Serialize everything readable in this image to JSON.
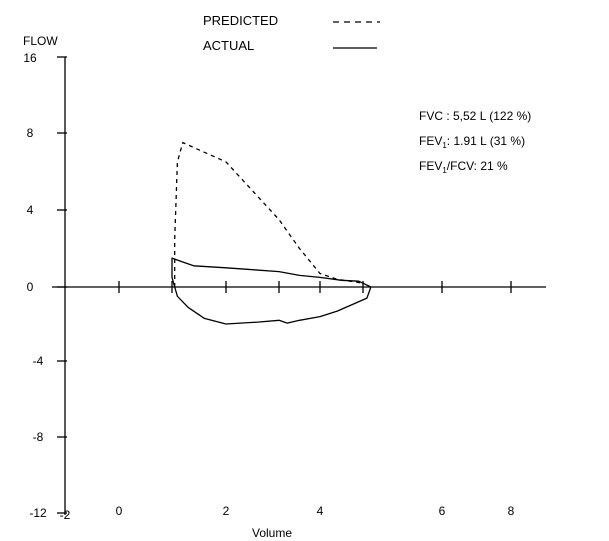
{
  "chart_data": {
    "type": "line",
    "title": "",
    "xlabel": "Volume",
    "ylabel": "FLOW",
    "xlim": [
      -2,
      9.6
    ],
    "ylim": [
      -12,
      16
    ],
    "x_ticks": [
      -2,
      0,
      2,
      4,
      6,
      8
    ],
    "x_minor_ticks": [
      1,
      3,
      5,
      7,
      9
    ],
    "y_ticks": [
      16,
      8,
      4,
      0,
      -4,
      -8,
      -12
    ],
    "legend": {
      "placement": "top-center",
      "entries": [
        {
          "name": "PREDICTED",
          "style": "dashed"
        },
        {
          "name": "ACTUAL",
          "style": "solid"
        }
      ]
    },
    "annotations": [
      {
        "id": "fvc",
        "text": "FVC : 5,52 L (122 %)"
      },
      {
        "id": "fev1",
        "prefix": "FEV",
        "sub": "1",
        "rest": ": 1.91 L (31 %)"
      },
      {
        "id": "ratio",
        "prefix": "FEV",
        "sub": "1",
        "rest": "/FCV: 21 %"
      }
    ],
    "series": [
      {
        "name": "PREDICTED",
        "style": "dashed",
        "points": [
          [
            1.05,
            0
          ],
          [
            1.05,
            2.5
          ],
          [
            1.1,
            6.5
          ],
          [
            1.2,
            7.5
          ],
          [
            1.6,
            7.0
          ],
          [
            2.0,
            6.5
          ],
          [
            2.5,
            5.0
          ],
          [
            3.0,
            3.5
          ],
          [
            3.5,
            2.0
          ],
          [
            4.0,
            0.7
          ],
          [
            4.4,
            0.4
          ],
          [
            5.0,
            0.2
          ]
        ]
      },
      {
        "name": "ACTUAL",
        "style": "solid",
        "points": [
          [
            1.05,
            0
          ],
          [
            1.0,
            0.5
          ],
          [
            1.0,
            1.5
          ],
          [
            1.2,
            1.3
          ],
          [
            1.4,
            1.1
          ],
          [
            2.0,
            1.0
          ],
          [
            2.5,
            0.9
          ],
          [
            3.0,
            0.8
          ],
          [
            3.5,
            0.6
          ],
          [
            4.0,
            0.5
          ],
          [
            4.5,
            0.35
          ],
          [
            4.9,
            0.3
          ],
          [
            5.1,
            0.0
          ],
          [
            5.05,
            -0.6
          ],
          [
            4.8,
            -0.9
          ],
          [
            4.4,
            -1.3
          ],
          [
            4.0,
            -1.6
          ],
          [
            3.5,
            -1.8
          ],
          [
            3.2,
            -1.95
          ],
          [
            3.0,
            -1.8
          ],
          [
            2.6,
            -1.9
          ],
          [
            2.0,
            -2.0
          ],
          [
            1.6,
            -1.7
          ],
          [
            1.3,
            -1.1
          ],
          [
            1.1,
            -0.5
          ],
          [
            1.05,
            0
          ]
        ]
      }
    ]
  }
}
